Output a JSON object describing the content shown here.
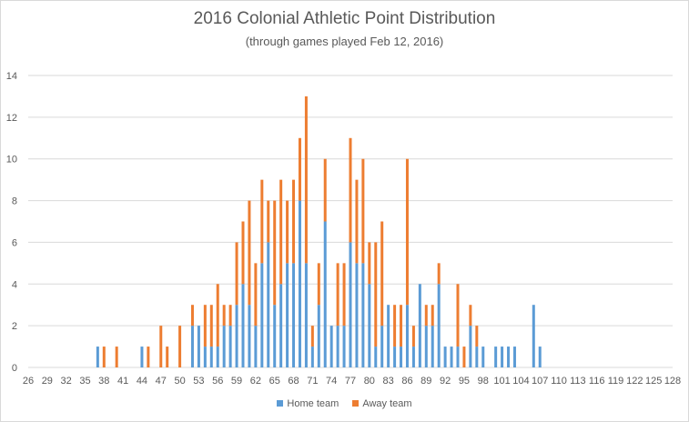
{
  "chart_data": {
    "type": "bar",
    "stacked": true,
    "title": "2016 Colonial Athletic Point Distribution",
    "subtitle": "(through games played Feb 12, 2016)",
    "xlabel": "",
    "ylabel": "",
    "ylim": [
      0,
      14
    ],
    "yticks": [
      0,
      2,
      4,
      6,
      8,
      10,
      12,
      14
    ],
    "x_range": [
      26,
      128
    ],
    "x_tick_labels": [
      "26",
      "29",
      "32",
      "35",
      "38",
      "41",
      "44",
      "47",
      "50",
      "53",
      "56",
      "59",
      "62",
      "65",
      "68",
      "71",
      "74",
      "77",
      "80",
      "83",
      "86",
      "89",
      "92",
      "95",
      "98",
      "101",
      "104",
      "107",
      "110",
      "113",
      "116",
      "119",
      "122",
      "125",
      "128"
    ],
    "grid": true,
    "legend_position": "bottom",
    "colors": {
      "home": "#5b9bd5",
      "away": "#ed7d31",
      "grid": "#d9d9d9"
    },
    "x": [
      37,
      38,
      40,
      44,
      45,
      47,
      48,
      50,
      52,
      53,
      54,
      55,
      56,
      57,
      58,
      59,
      60,
      61,
      62,
      63,
      64,
      65,
      66,
      67,
      68,
      69,
      70,
      71,
      72,
      73,
      74,
      75,
      76,
      77,
      78,
      79,
      80,
      81,
      82,
      83,
      84,
      85,
      86,
      87,
      88,
      89,
      90,
      91,
      92,
      93,
      94,
      95,
      96,
      97,
      98,
      100,
      101,
      102,
      103,
      106,
      107
    ],
    "series": [
      {
        "name": "Home team",
        "values": [
          1,
          0,
          0,
          1,
          0,
          0,
          0,
          0,
          2,
          2,
          1,
          1,
          1,
          2,
          2,
          3,
          4,
          3,
          2,
          5,
          6,
          3,
          4,
          5,
          5,
          8,
          5,
          1,
          3,
          7,
          2,
          2,
          2,
          6,
          5,
          5,
          4,
          1,
          2,
          3,
          1,
          1,
          3,
          1,
          4,
          2,
          2,
          4,
          1,
          1,
          1,
          0,
          2,
          1,
          1,
          1,
          1,
          1,
          1,
          3,
          1
        ]
      },
      {
        "name": "Away team",
        "values": [
          0,
          1,
          1,
          0,
          1,
          2,
          1,
          2,
          1,
          0,
          2,
          2,
          3,
          1,
          1,
          3,
          3,
          5,
          3,
          4,
          2,
          5,
          5,
          3,
          4,
          3,
          8,
          1,
          2,
          3,
          0,
          3,
          3,
          5,
          4,
          5,
          2,
          5,
          5,
          0,
          2,
          2,
          7,
          1,
          0,
          1,
          1,
          1,
          0,
          0,
          3,
          1,
          1,
          1,
          0,
          0,
          0,
          0,
          0,
          0,
          0
        ]
      }
    ]
  },
  "legend": {
    "home_label": "Home team",
    "away_label": "Away team"
  }
}
